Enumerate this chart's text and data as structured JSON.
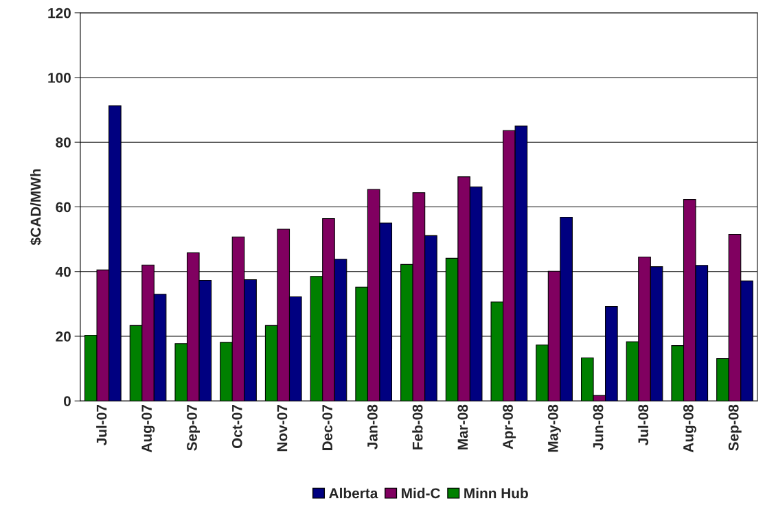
{
  "chart_data": {
    "type": "bar",
    "ylabel": "$CAD/MWh",
    "categories": [
      "Jul-07",
      "Aug-07",
      "Sep-07",
      "Oct-07",
      "Nov-07",
      "Dec-07",
      "Jan-08",
      "Feb-08",
      "Mar-08",
      "Apr-08",
      "May-08",
      "Jun-08",
      "Jul-08",
      "Aug-08",
      "Sep-08"
    ],
    "series": [
      {
        "name": "Minn Hub",
        "color": "#008000",
        "values": [
          20.3,
          23.3,
          17.7,
          18.1,
          23.3,
          38.5,
          35.2,
          42.2,
          44.1,
          30.6,
          17.3,
          13.3,
          18.3,
          17.1,
          13.1
        ]
      },
      {
        "name": "Mid-C",
        "color": "#800060",
        "values": [
          40.5,
          42,
          45.8,
          50.7,
          53.1,
          56.4,
          65.4,
          64.4,
          69.3,
          83.6,
          40.1,
          1.7,
          44.5,
          62.3,
          51.5
        ]
      },
      {
        "name": "Alberta",
        "color": "#000080",
        "values": [
          91.3,
          33,
          37.3,
          37.5,
          32.2,
          43.8,
          55,
          51.1,
          66.2,
          85,
          56.8,
          29.2,
          41.5,
          41.9,
          37.1
        ]
      }
    ],
    "ylim": [
      0,
      120
    ],
    "yticks": [
      0,
      20,
      40,
      60,
      80,
      100,
      120
    ],
    "grid": "y",
    "legend": "bottom"
  }
}
